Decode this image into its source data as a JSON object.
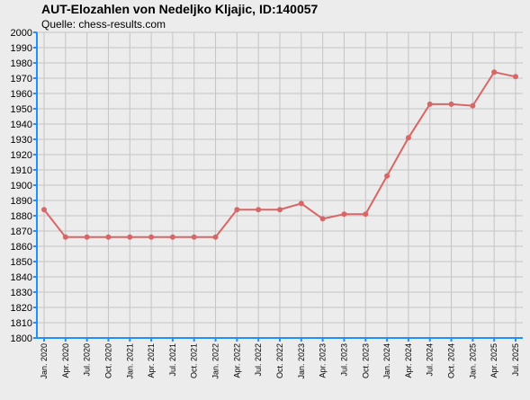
{
  "chart_data": {
    "type": "line",
    "title": "AUT-Elozahlen von Nedeljko Kljajic, ID:140057",
    "subtitle": "Quelle: chess-results.com",
    "xlabel": "",
    "ylabel": "",
    "ylim": [
      1800,
      2000
    ],
    "ytick_step": 10,
    "grid": true,
    "legend": "none",
    "line_color": "#d96666",
    "axis_color": "#1e90ff",
    "categories": [
      "Jan. 2020",
      "Apr. 2020",
      "Jul. 2020",
      "Oct. 2020",
      "Jan. 2021",
      "Apr. 2021",
      "Jul. 2021",
      "Oct. 2021",
      "Jan. 2022",
      "Apr. 2022",
      "Jul. 2022",
      "Oct. 2022",
      "Jan. 2023",
      "Apr. 2023",
      "Jul. 2023",
      "Oct. 2023",
      "Jan. 2024",
      "Apr. 2024",
      "Jul. 2024",
      "Oct. 2024",
      "Jan. 2025",
      "Apr. 2025",
      "Jul. 2025"
    ],
    "values": [
      1884,
      1866,
      1866,
      1866,
      1866,
      1866,
      1866,
      1866,
      1866,
      1884,
      1884,
      1884,
      1888,
      1878,
      1881,
      1881,
      1906,
      1931,
      1953,
      1953,
      1952,
      1974,
      1971
    ]
  }
}
